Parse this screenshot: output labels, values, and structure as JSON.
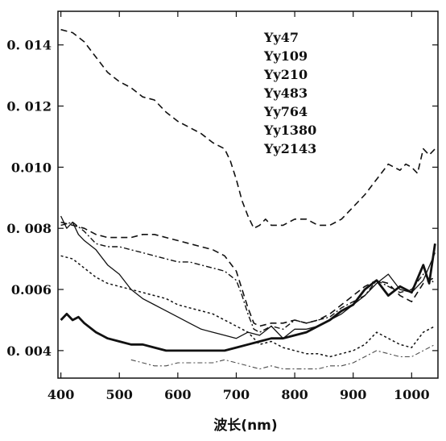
{
  "chart_data": {
    "type": "line",
    "xlabel": "波长(nm)",
    "ylabel": "",
    "title": "",
    "xlim": [
      395,
      1045
    ],
    "ylim": [
      0.0031,
      0.0151
    ],
    "xticks": [
      400,
      500,
      600,
      700,
      800,
      900,
      1000
    ],
    "xtick_labels": [
      "400",
      "500",
      "600",
      "700",
      "800",
      "900",
      "1000"
    ],
    "yticks": [
      0.004,
      0.006,
      0.008,
      0.01,
      0.012,
      0.014
    ],
    "ytick_labels": [
      "0. 004",
      "0.006",
      "0. 008",
      "0.010",
      "0. 012",
      "0. 014"
    ],
    "legend_position": "top-center",
    "legend_entries": [
      "Yy47",
      "Yy109",
      "Yy210",
      "Yy483",
      "Yy764",
      "Yy1380",
      "Yy2143"
    ],
    "series": [
      {
        "style": "dashed",
        "x": [
          400,
          420,
          440,
          460,
          480,
          500,
          520,
          540,
          560,
          580,
          600,
          620,
          640,
          660,
          680,
          690,
          700,
          710,
          720,
          730,
          740,
          750,
          760,
          780,
          800,
          820,
          840,
          860,
          880,
          900,
          920,
          940,
          960,
          980,
          990,
          1000,
          1010,
          1020,
          1030,
          1040
        ],
        "y": [
          0.0145,
          0.0144,
          0.0141,
          0.0136,
          0.0131,
          0.0128,
          0.0126,
          0.0123,
          0.0122,
          0.0118,
          0.0115,
          0.0113,
          0.0111,
          0.0108,
          0.0106,
          0.0102,
          0.0096,
          0.0089,
          0.0084,
          0.008,
          0.0081,
          0.0083,
          0.0081,
          0.0081,
          0.0083,
          0.0083,
          0.0081,
          0.0081,
          0.0083,
          0.0087,
          0.0091,
          0.0096,
          0.0101,
          0.0099,
          0.0101,
          0.01,
          0.0098,
          0.0106,
          0.0104,
          0.0106
        ]
      },
      {
        "style": "solid-thin",
        "x": [
          400,
          410,
          420,
          430,
          440,
          460,
          480,
          500,
          520,
          540,
          560,
          580,
          600,
          620,
          640,
          660,
          680,
          700,
          720,
          740,
          760,
          780,
          800,
          820,
          840,
          860,
          880,
          900,
          920,
          940,
          960,
          980,
          1000,
          1020,
          1040
        ],
        "y": [
          0.0084,
          0.008,
          0.0082,
          0.0078,
          0.0076,
          0.0073,
          0.0068,
          0.0065,
          0.006,
          0.0057,
          0.0055,
          0.0053,
          0.0051,
          0.0049,
          0.0047,
          0.0046,
          0.0045,
          0.0044,
          0.0046,
          0.0045,
          0.0048,
          0.0044,
          0.0047,
          0.0047,
          0.0048,
          0.005,
          0.0052,
          0.0055,
          0.0058,
          0.0062,
          0.0065,
          0.006,
          0.0059,
          0.0063,
          0.0072
        ]
      },
      {
        "style": "dash-dot",
        "x": [
          400,
          420,
          440,
          460,
          480,
          500,
          520,
          540,
          560,
          580,
          600,
          620,
          640,
          660,
          680,
          700,
          710,
          720,
          730,
          740,
          760,
          780,
          800,
          820,
          840,
          860,
          880,
          900,
          920,
          940,
          960,
          980,
          1000,
          1020,
          1040
        ],
        "y": [
          0.0081,
          0.0082,
          0.0079,
          0.0075,
          0.0074,
          0.0074,
          0.0073,
          0.0072,
          0.0071,
          0.007,
          0.0069,
          0.0069,
          0.0068,
          0.0067,
          0.0066,
          0.0063,
          0.0058,
          0.0052,
          0.0047,
          0.0046,
          0.0048,
          0.0047,
          0.005,
          0.0049,
          0.005,
          0.0051,
          0.0054,
          0.0056,
          0.0058,
          0.0063,
          0.0061,
          0.0059,
          0.006,
          0.0065,
          0.0062
        ]
      },
      {
        "style": "dashed",
        "x": [
          400,
          420,
          440,
          460,
          480,
          500,
          520,
          540,
          560,
          580,
          600,
          620,
          640,
          660,
          680,
          700,
          710,
          720,
          730,
          740,
          760,
          780,
          800,
          820,
          840,
          860,
          880,
          900,
          920,
          940,
          960,
          980,
          1000,
          1020,
          1040
        ],
        "y": [
          0.0082,
          0.0081,
          0.008,
          0.0078,
          0.0077,
          0.0077,
          0.0077,
          0.0078,
          0.0078,
          0.0077,
          0.0076,
          0.0075,
          0.0074,
          0.0073,
          0.0071,
          0.0066,
          0.006,
          0.0054,
          0.0049,
          0.0048,
          0.0049,
          0.0049,
          0.005,
          0.0049,
          0.005,
          0.0052,
          0.0055,
          0.0058,
          0.0061,
          0.0063,
          0.0062,
          0.0058,
          0.0056,
          0.0062,
          0.0064
        ]
      },
      {
        "style": "dotted",
        "x": [
          400,
          420,
          440,
          460,
          480,
          500,
          520,
          540,
          560,
          580,
          600,
          620,
          640,
          660,
          680,
          700,
          720,
          740,
          760,
          780,
          800,
          820,
          840,
          860,
          880,
          900,
          920,
          940,
          960,
          980,
          1000,
          1020,
          1040
        ],
        "y": [
          0.0071,
          0.007,
          0.0067,
          0.0064,
          0.0062,
          0.0061,
          0.006,
          0.0059,
          0.0058,
          0.0057,
          0.0055,
          0.0054,
          0.0053,
          0.0052,
          0.005,
          0.0048,
          0.0046,
          0.0042,
          0.0043,
          0.0041,
          0.004,
          0.0039,
          0.0039,
          0.0038,
          0.0039,
          0.004,
          0.0042,
          0.0046,
          0.0044,
          0.0042,
          0.0041,
          0.0046,
          0.0048
        ]
      },
      {
        "style": "solid-thick",
        "x": [
          400,
          410,
          420,
          430,
          440,
          460,
          480,
          500,
          520,
          540,
          560,
          580,
          600,
          620,
          640,
          660,
          680,
          700,
          720,
          740,
          760,
          780,
          800,
          820,
          840,
          860,
          880,
          900,
          920,
          940,
          960,
          980,
          1000,
          1020,
          1030,
          1040
        ],
        "y": [
          0.005,
          0.0052,
          0.005,
          0.0051,
          0.0049,
          0.0046,
          0.0044,
          0.0043,
          0.0042,
          0.0042,
          0.0041,
          0.004,
          0.004,
          0.004,
          0.004,
          0.004,
          0.004,
          0.0041,
          0.0042,
          0.0043,
          0.0044,
          0.0044,
          0.0045,
          0.0046,
          0.0048,
          0.005,
          0.0053,
          0.0055,
          0.006,
          0.0063,
          0.0058,
          0.0061,
          0.0059,
          0.0068,
          0.0062,
          0.0075
        ]
      },
      {
        "style": "dash-dot-light",
        "x": [
          520,
          540,
          560,
          580,
          600,
          620,
          640,
          660,
          680,
          700,
          720,
          740,
          760,
          780,
          800,
          820,
          840,
          860,
          880,
          900,
          920,
          940,
          960,
          980,
          1000,
          1020,
          1040
        ],
        "y": [
          0.0037,
          0.0036,
          0.0035,
          0.0035,
          0.0036,
          0.0036,
          0.0036,
          0.0036,
          0.0037,
          0.0036,
          0.0035,
          0.0034,
          0.0035,
          0.0034,
          0.0034,
          0.0034,
          0.0034,
          0.0035,
          0.0035,
          0.0036,
          0.0038,
          0.004,
          0.0039,
          0.0038,
          0.0038,
          0.004,
          0.0042
        ]
      }
    ]
  }
}
